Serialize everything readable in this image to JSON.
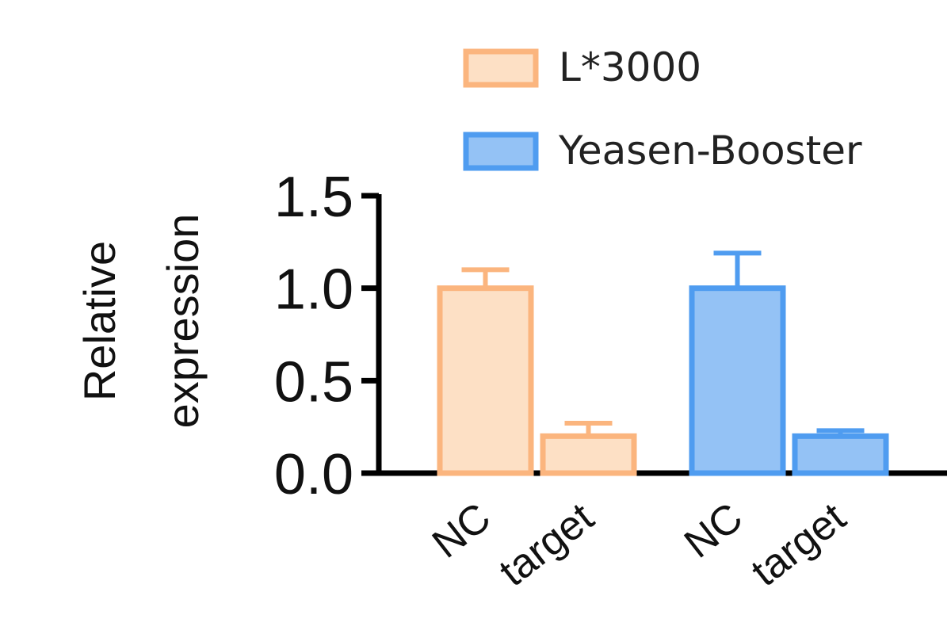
{
  "chart_data": {
    "type": "bar",
    "ylabel_lines": [
      "Relative",
      "expression"
    ],
    "ylim": [
      0,
      1.5
    ],
    "yticks": [
      "0.0",
      "0.5",
      "1.0",
      "1.5"
    ],
    "grid": false,
    "legend_position": "top-right",
    "groups": [
      {
        "name": "L*3000",
        "categories": [
          "NC",
          "target"
        ],
        "values": [
          1.0,
          0.2
        ],
        "errors": [
          0.1,
          0.07
        ],
        "fill": "#fde0c5",
        "stroke": "#fbb57e"
      },
      {
        "name": "Yeasen-Booster",
        "categories": [
          "NC",
          "target"
        ],
        "values": [
          1.0,
          0.2
        ],
        "errors": [
          0.19,
          0.03
        ],
        "fill": "#94c2f5",
        "stroke": "#4f9cf0"
      }
    ]
  }
}
